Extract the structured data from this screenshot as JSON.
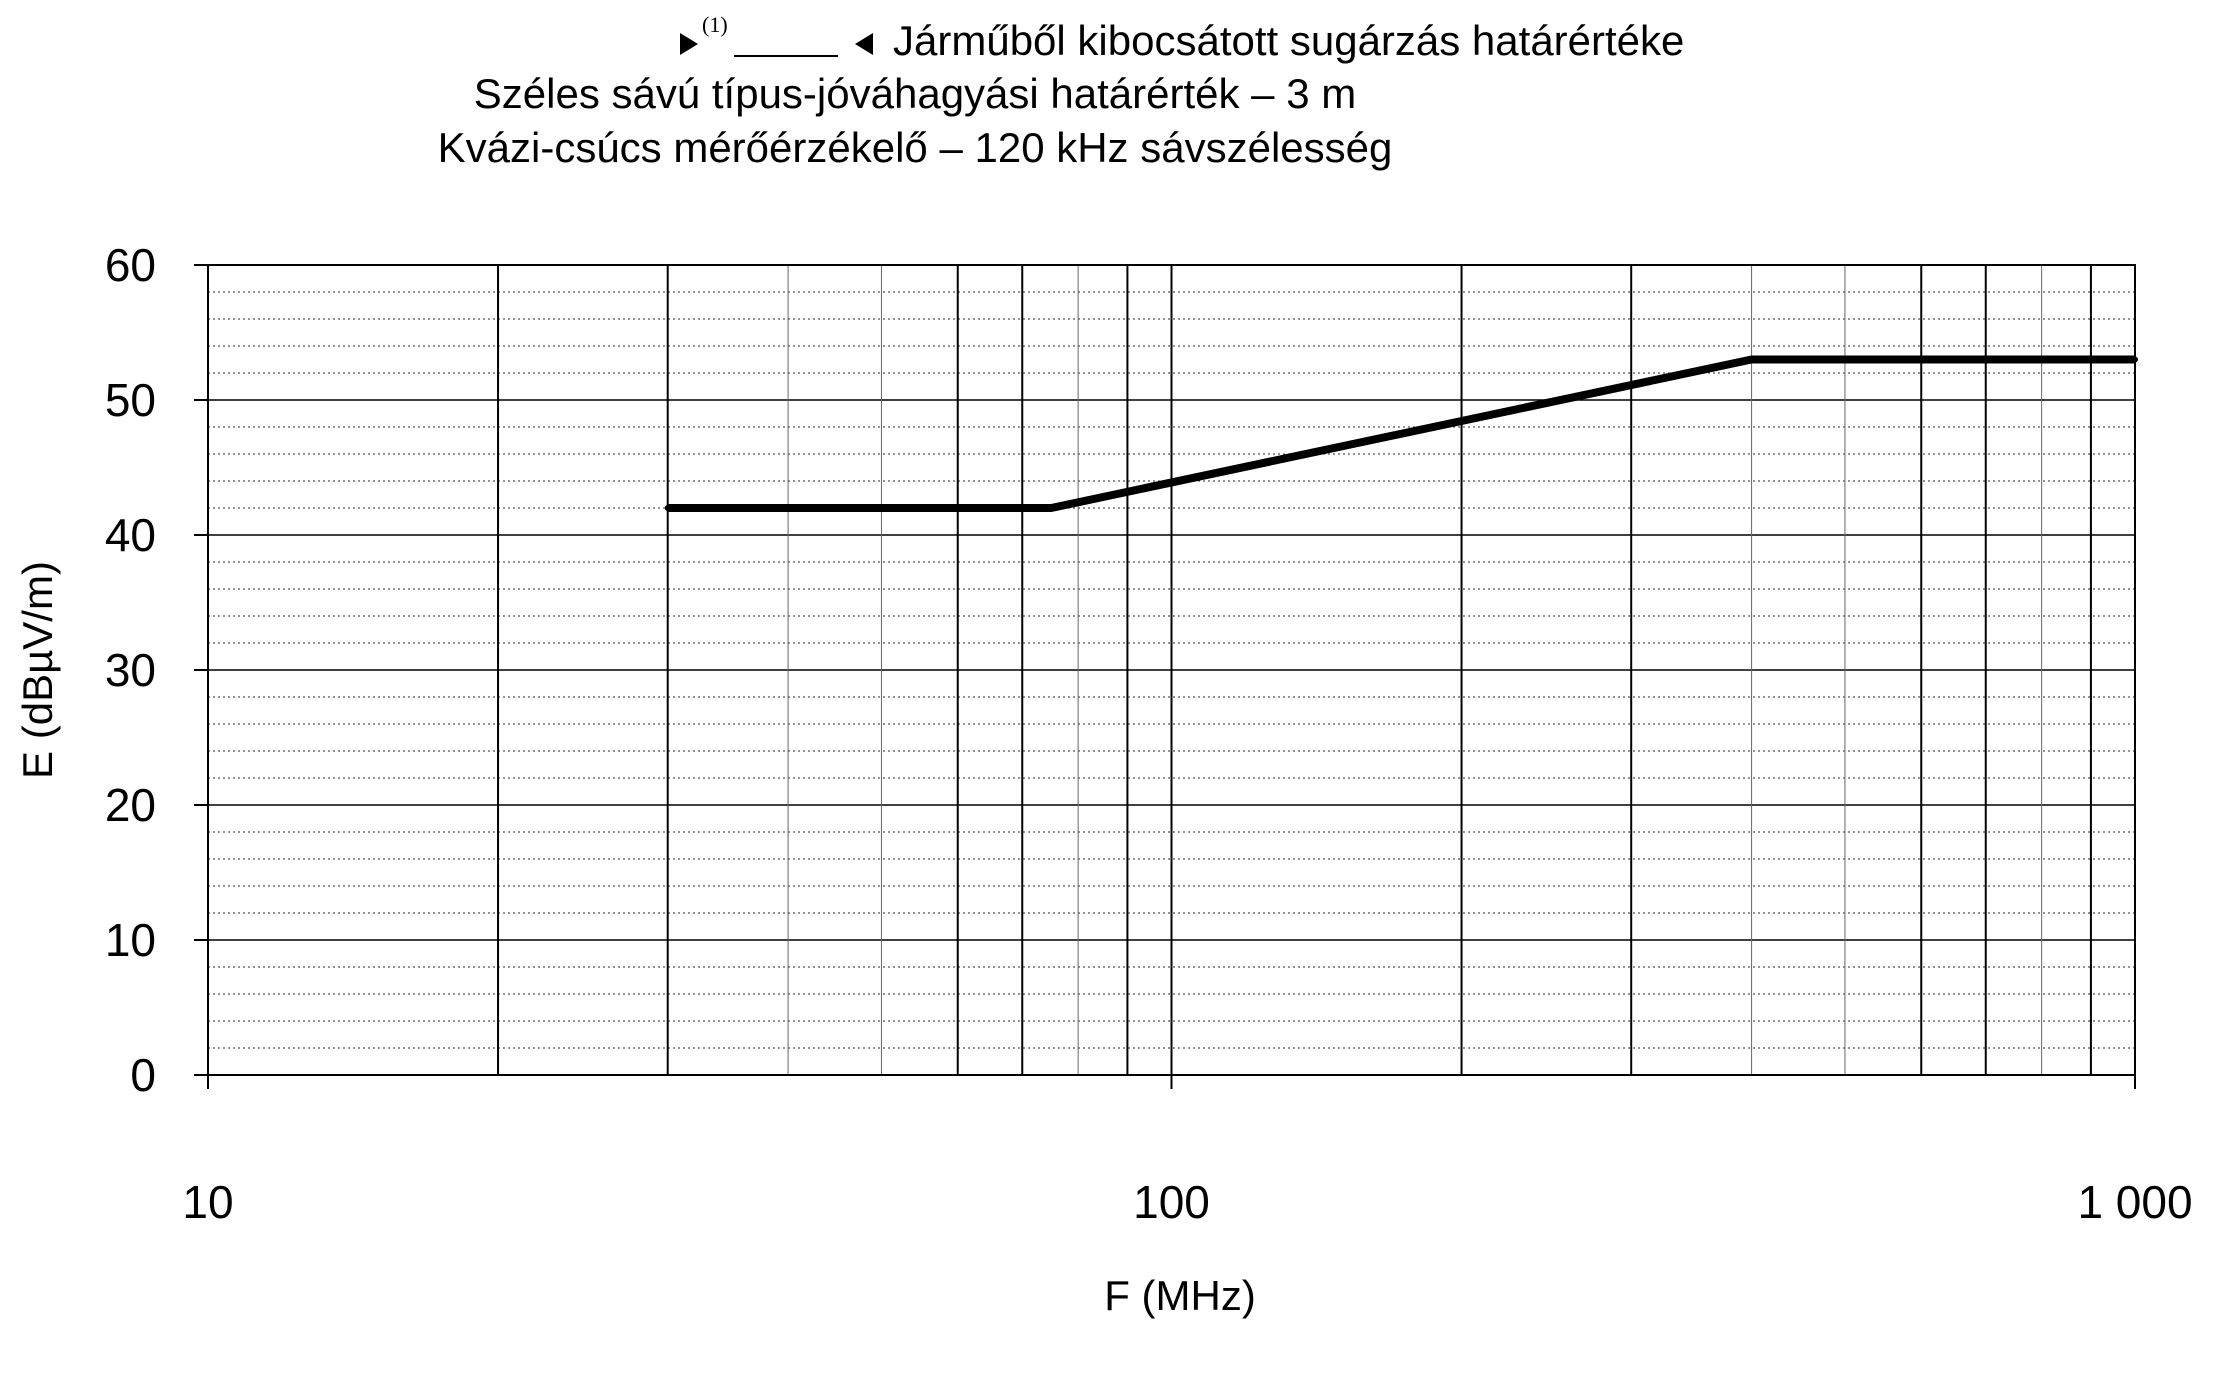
{
  "chart_data": {
    "type": "line",
    "title_lines": [
      "Járműből kibocsátott sugárzás határértéke",
      "Széles sávú típus-jóváhagyási határérték – 3 m",
      "Kvázi-csúcs mérőérzékelő – 120 kHz sávszélesség"
    ],
    "title_marker_sup": "(1)",
    "xlabel": "F (MHz)",
    "ylabel": "E (dBµV/m)",
    "x_scale": "log",
    "xlim": [
      10,
      1000
    ],
    "ylim": [
      0,
      60
    ],
    "x_ticks": [
      {
        "value": 10,
        "label": "10"
      },
      {
        "value": 100,
        "label": "100"
      },
      {
        "value": 1000,
        "label": "1 000"
      }
    ],
    "y_ticks": [
      {
        "value": 0,
        "label": "0"
      },
      {
        "value": 10,
        "label": "10"
      },
      {
        "value": 20,
        "label": "20"
      },
      {
        "value": 30,
        "label": "30"
      },
      {
        "value": 40,
        "label": "40"
      },
      {
        "value": 50,
        "label": "50"
      },
      {
        "value": 60,
        "label": "60"
      }
    ],
    "grid": true,
    "legend": "none",
    "series": [
      {
        "points": [
          {
            "x": 30,
            "y": 42
          },
          {
            "x": 75,
            "y": 42
          },
          {
            "x": 400,
            "y": 53
          },
          {
            "x": 1000,
            "y": 53
          }
        ],
        "color": "#000000"
      }
    ]
  }
}
